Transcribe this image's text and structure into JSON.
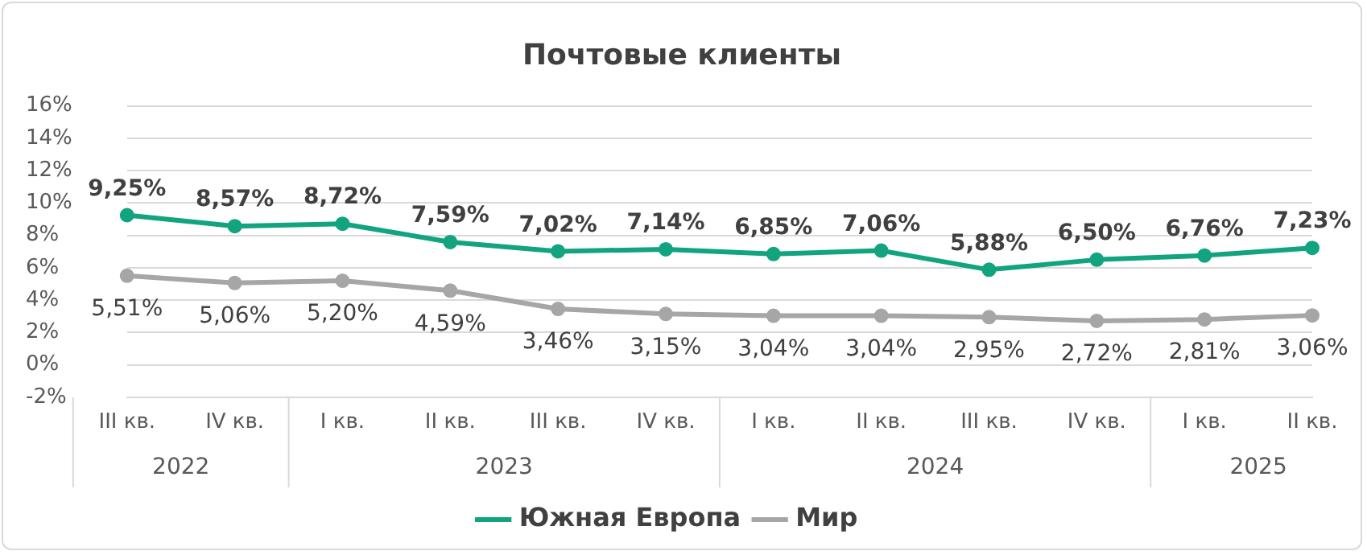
{
  "chart_data": {
    "type": "line",
    "title": "Почтовые клиенты",
    "categories": [
      "III кв.",
      "IV кв.",
      "I кв.",
      "II кв.",
      "III кв.",
      "IV кв.",
      "I кв.",
      "II кв.",
      "III кв.",
      "IV кв.",
      "I кв.",
      "II кв."
    ],
    "series": [
      {
        "name": "Южная Европа",
        "color": "#12a37f",
        "values": [
          9.25,
          8.57,
          8.72,
          7.59,
          7.02,
          7.14,
          6.85,
          7.06,
          5.88,
          6.5,
          6.76,
          7.23
        ],
        "value_labels": [
          "9,25%",
          "8,57%",
          "8,72%",
          "7,59%",
          "7,02%",
          "7,14%",
          "6,85%",
          "7,06%",
          "5,88%",
          "6,50%",
          "6,76%",
          "7,23%"
        ]
      },
      {
        "name": "Мир",
        "color": "#a6a6a6",
        "values": [
          5.51,
          5.06,
          5.2,
          4.59,
          3.46,
          3.15,
          3.04,
          3.04,
          2.95,
          2.72,
          2.81,
          3.06
        ],
        "value_labels": [
          "5,51%",
          "5,06%",
          "5,20%",
          "4,59%",
          "3,46%",
          "3,15%",
          "3,04%",
          "3,04%",
          "2,95%",
          "2,72%",
          "2,81%",
          "3,06%"
        ]
      }
    ],
    "ylim": [
      -2,
      16
    ],
    "yticks": [
      {
        "value": -2,
        "label": "-2%"
      },
      {
        "value": 0,
        "label": "0%"
      },
      {
        "value": 2,
        "label": "2%"
      },
      {
        "value": 4,
        "label": "4%"
      },
      {
        "value": 6,
        "label": "6%"
      },
      {
        "value": 8,
        "label": "8%"
      },
      {
        "value": 10,
        "label": "10%"
      },
      {
        "value": 12,
        "label": "12%"
      },
      {
        "value": 14,
        "label": "14%"
      },
      {
        "value": 16,
        "label": "16%"
      }
    ],
    "grid": "y",
    "legend": "bottom",
    "marker": "circle",
    "line_style": "solid",
    "annotations": [
      "2022",
      "2023",
      "2024",
      "2025"
    ]
  }
}
